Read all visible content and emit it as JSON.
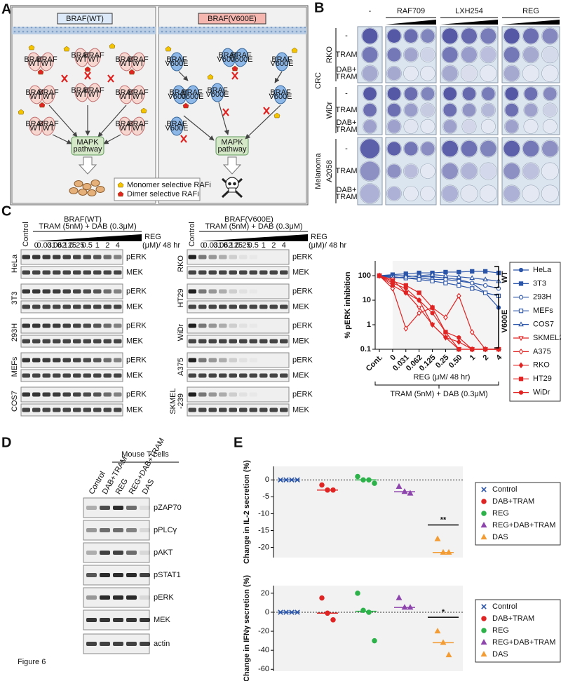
{
  "figure_label": "Figure 6",
  "panel_a": {
    "letter": "A",
    "wt_title": "BRAF(WT)",
    "mut_title": "BRAF(V600E)",
    "wt_protein": [
      "BRAF",
      "WT"
    ],
    "mut_protein": [
      "BRAF",
      "V600E"
    ],
    "pathway": [
      "MAPK",
      "pathway"
    ],
    "legend": [
      "Monomer selective RAFi",
      "Dimer selective RAFi"
    ]
  },
  "panel_b": {
    "letter": "B",
    "columns": [
      "-",
      "RAF709",
      "LXH254",
      "REG"
    ],
    "tissues": [
      "CRC",
      "Melanoma"
    ],
    "cell_lines": [
      "RKO",
      "WiDr",
      "A2058"
    ],
    "treatments": [
      [
        "-"
      ],
      [
        "TRAM"
      ],
      [
        "DAB+",
        "TRAM"
      ]
    ]
  },
  "panel_c": {
    "letter": "C",
    "wt_title": "BRAF(WT)",
    "mut_title": "BRAF(V600E)",
    "control": "Control",
    "treatment": "TRAM (5nM) + DAB (0.3μM)",
    "drug": "REG",
    "unit": "(μM)/ 48 hr",
    "doses": [
      "0",
      "0.031",
      "0.062",
      "0.125",
      "0.25",
      "0.5",
      "1",
      "2",
      "4"
    ],
    "blot_labels": [
      "pERK",
      "MEK"
    ],
    "wt_lines": [
      [
        "HeLa"
      ],
      [
        "3T3"
      ],
      [
        "293H"
      ],
      [
        "MEFs"
      ],
      [
        "COS7"
      ]
    ],
    "mut_lines": [
      [
        "RKO"
      ],
      [
        "HT29"
      ],
      [
        "WiDr"
      ],
      [
        "A375"
      ],
      [
        "SKMEL",
        "-239"
      ]
    ]
  },
  "panel_d": {
    "letter": "D",
    "group": "Mouse T cells",
    "lanes": [
      "Control",
      "DAB+TRAM",
      "REG",
      "REG+DAB+TRAM",
      "DAS"
    ],
    "proteins": [
      "pZAP70",
      "pPLCγ",
      "pAKT",
      "pSTAT1",
      "pERK",
      "MEK",
      "actin"
    ]
  },
  "panel_e": {
    "letter": "E"
  },
  "chart_data": [
    {
      "type": "line",
      "y_label": "% pERK inhibition",
      "x_label": "REG (μM/ 48 hr)",
      "bracket_label": "TRAM (5nM) + DAB (0.3μM)",
      "side_labels": [
        "WT",
        "V600E"
      ],
      "log_y": true,
      "categories": [
        "Cont.",
        "0",
        "0.031",
        "0.062",
        "0.125",
        "0.25",
        "0.50",
        "1",
        "2",
        "4"
      ],
      "ylim": [
        0.1,
        400
      ],
      "yticks": [
        0.1,
        1,
        10,
        100
      ],
      "series": [
        {
          "name": "HeLa",
          "color": "#2b55a8",
          "marker": "circle",
          "values": [
            100,
            100,
            100,
            90,
            90,
            80,
            70,
            50,
            20,
            5
          ]
        },
        {
          "name": "3T3",
          "color": "#2b55a8",
          "marker": "square",
          "values": [
            100,
            110,
            120,
            130,
            130,
            140,
            140,
            150,
            150,
            130
          ]
        },
        {
          "name": "293H",
          "color": "#2b55a8",
          "marker": "circle-open",
          "values": [
            100,
            90,
            80,
            80,
            70,
            70,
            60,
            50,
            40,
            30
          ]
        },
        {
          "name": "MEFs",
          "color": "#2b55a8",
          "marker": "square-open",
          "values": [
            100,
            85,
            80,
            70,
            60,
            50,
            40,
            30,
            20,
            15
          ]
        },
        {
          "name": "COS7",
          "color": "#2b55a8",
          "marker": "triangle-open",
          "values": [
            100,
            80,
            90,
            100,
            110,
            100,
            90,
            80,
            70,
            60
          ]
        },
        {
          "name": "SKMEL239",
          "color": "#e02424",
          "marker": "triangle-down-open",
          "values": [
            100,
            70,
            20,
            5,
            1,
            0.3,
            0.1,
            0.1,
            0.1,
            0.1
          ]
        },
        {
          "name": "A375",
          "color": "#e02424",
          "marker": "diamond-open",
          "values": [
            100,
            30,
            0.7,
            3,
            5,
            2,
            15,
            0.5,
            0.1,
            0.1
          ]
        },
        {
          "name": "RKO",
          "color": "#e02424",
          "marker": "diamond",
          "values": [
            100,
            50,
            30,
            10,
            1,
            0.3,
            0.2,
            0.1,
            0.1,
            0.1
          ]
        },
        {
          "name": "HT29",
          "color": "#e02424",
          "marker": "square",
          "values": [
            100,
            60,
            40,
            20,
            5,
            0.5,
            0.1,
            0.1,
            0.1,
            0.1
          ]
        },
        {
          "name": "WiDr",
          "color": "#e02424",
          "marker": "circle",
          "values": [
            100,
            40,
            20,
            10,
            3,
            0.5,
            0.3,
            0.1,
            0.1,
            0.1
          ]
        }
      ]
    },
    {
      "type": "strip",
      "y_label": "Change in IL-2 secretion (%)",
      "annotation": "**",
      "zero_line": true,
      "ylim": [
        -23,
        4
      ],
      "yticks": [
        0,
        -5,
        -10,
        -15,
        -20
      ],
      "series": [
        {
          "name": "Control",
          "color": "#2b55a8",
          "marker": "x",
          "values": [
            0,
            0,
            0,
            0
          ],
          "median": 0
        },
        {
          "name": "DAB+TRAM",
          "color": "#e02424",
          "marker": "circle",
          "values": [
            -1.5,
            -3,
            -3
          ],
          "median": -3
        },
        {
          "name": "REG",
          "color": "#2db24a",
          "marker": "circle",
          "values": [
            1,
            0,
            0,
            -1
          ],
          "median": 0
        },
        {
          "name": "REG+DAB+TRAM",
          "color": "#8e44ad",
          "marker": "triangle",
          "values": [
            -2,
            -3.5,
            -4
          ],
          "median": -3.5
        },
        {
          "name": "DAS",
          "color": "#f39c34",
          "marker": "triangle",
          "values": [
            -17.5,
            -21.5,
            -21.5
          ],
          "median": -21.5
        }
      ]
    },
    {
      "type": "strip",
      "y_label": "Change in IFNγ secretion (%)",
      "annotation": "*",
      "zero_line": true,
      "ylim": [
        -62,
        28
      ],
      "yticks": [
        20,
        0,
        -20,
        -40,
        -60
      ],
      "series": [
        {
          "name": "Control",
          "color": "#2b55a8",
          "marker": "x",
          "values": [
            0,
            0,
            0,
            0
          ],
          "median": 0
        },
        {
          "name": "DAB+TRAM",
          "color": "#e02424",
          "marker": "circle",
          "values": [
            15,
            -1,
            -8
          ],
          "median": -1
        },
        {
          "name": "REG",
          "color": "#2db24a",
          "marker": "circle",
          "values": [
            20,
            2,
            0,
            -30
          ],
          "median": 1
        },
        {
          "name": "REG+DAB+TRAM",
          "color": "#8e44ad",
          "marker": "triangle",
          "values": [
            15,
            5,
            5
          ],
          "median": 5
        },
        {
          "name": "DAS",
          "color": "#f39c34",
          "marker": "triangle",
          "values": [
            -20,
            -32,
            -45
          ],
          "median": -32
        }
      ]
    }
  ]
}
